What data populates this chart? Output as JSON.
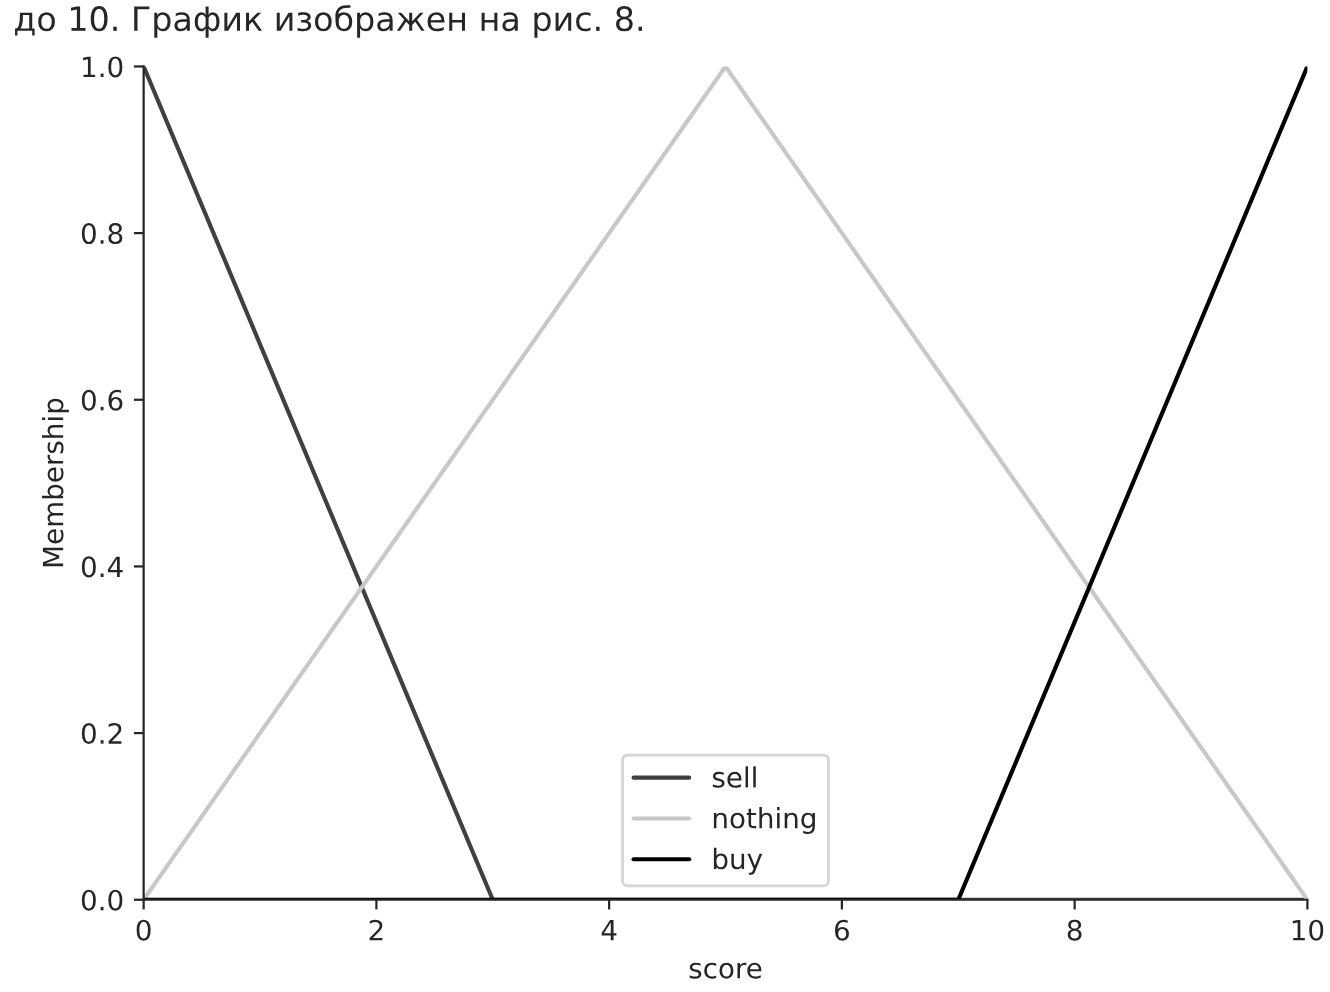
{
  "chart_data": {
    "type": "line",
    "xlabel": "score",
    "ylabel": "Membership",
    "annotations": [
      "до 10. График изображен на рис. 8."
    ],
    "series": [
      {
        "name": "sell",
        "color": "#404040",
        "x": [
          0,
          3,
          10
        ],
        "values": [
          1,
          0,
          0
        ]
      },
      {
        "name": "nothing",
        "color": "#c8c8c8",
        "x": [
          0,
          5,
          10
        ],
        "values": [
          0,
          1,
          0
        ]
      },
      {
        "name": "buy",
        "color": "#000000",
        "x": [
          0,
          7,
          10
        ],
        "values": [
          0,
          0,
          1
        ]
      }
    ],
    "xlim": [
      0,
      10
    ],
    "xticks": [
      0,
      2,
      4,
      6,
      8,
      10
    ],
    "ylim": [
      0,
      1
    ],
    "yticks": [
      {
        "value": 0,
        "label": "0.0"
      },
      {
        "value": 0.2,
        "label": "0.2"
      },
      {
        "value": 0.4,
        "label": "0.4"
      },
      {
        "value": 0.6,
        "label": "0.6"
      },
      {
        "value": 0.8,
        "label": "0.8"
      },
      {
        "value": 1,
        "label": "1.0"
      }
    ],
    "grid": false,
    "legend": "bottom",
    "marker": "none",
    "line_style": "solid"
  }
}
